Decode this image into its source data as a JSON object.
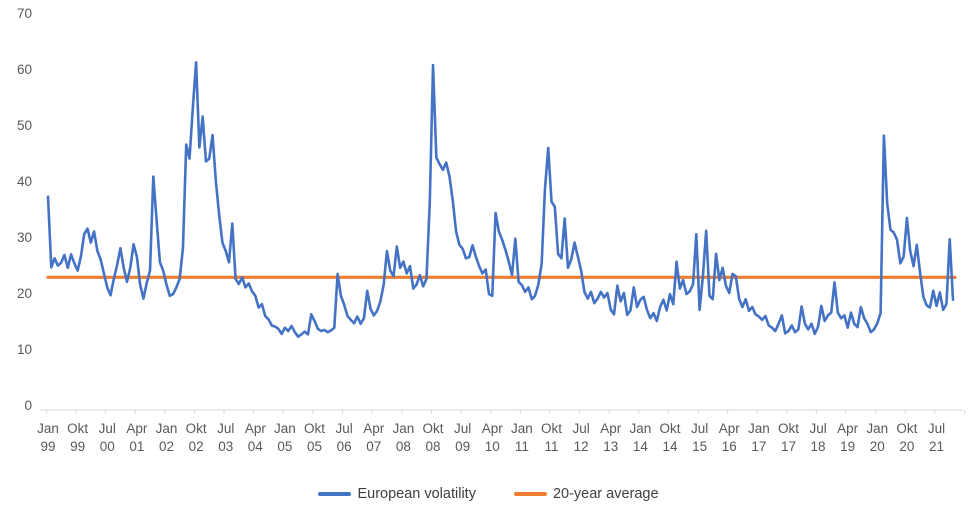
{
  "chart_data": {
    "type": "line",
    "title": "",
    "xlabel": "",
    "ylabel": "",
    "x_start": "Jan 1999",
    "x_frequency": "monthly",
    "x_tick_every_months": 9,
    "x_tick_labels": [
      "Jan 99",
      "Okt 99",
      "Jul 00",
      "Apr 01",
      "Jan 02",
      "Okt 02",
      "Jul 03",
      "Apr 04",
      "Jan 05",
      "Okt 05",
      "Jul 06",
      "Apr 07",
      "Jan 08",
      "Okt 08",
      "Jul 09",
      "Apr 10",
      "Jan 11",
      "Okt 11",
      "Jul 12",
      "Apr 13",
      "Jan 14",
      "Okt 14",
      "Jul 15",
      "Apr 16",
      "Jan 17",
      "Okt 17",
      "Jul 18",
      "Apr 19",
      "Jan 20",
      "Okt 20",
      "Jul 21"
    ],
    "ylim": [
      0,
      70
    ],
    "yticks": [
      0,
      10,
      20,
      30,
      40,
      50,
      60,
      70
    ],
    "grid": false,
    "legend_position": "bottom",
    "axis_text_color": "#595959",
    "axis_line_color": "#d9d9d9",
    "series": [
      {
        "name": "European volatility",
        "color": "#4472c4",
        "values": [
          37.2,
          24.6,
          26.2,
          24.9,
          25.4,
          26.8,
          24.5,
          26.9,
          25.3,
          24.0,
          26.5,
          30.5,
          31.5,
          29.0,
          31.0,
          27.5,
          26.0,
          23.5,
          21.0,
          19.6,
          22.5,
          25.0,
          28.0,
          24.5,
          22.0,
          24.5,
          28.7,
          26.5,
          21.5,
          19.0,
          21.8,
          24.0,
          40.8,
          33.0,
          25.5,
          24.0,
          21.5,
          19.5,
          19.8,
          21.0,
          22.5,
          28.0,
          46.5,
          44.0,
          53.0,
          61.2,
          46.0,
          51.5,
          43.5,
          44.0,
          48.2,
          40.0,
          34.0,
          29.0,
          27.5,
          25.5,
          32.4,
          22.5,
          21.6,
          22.8,
          21.0,
          21.7,
          20.3,
          19.5,
          17.4,
          18.0,
          15.9,
          15.3,
          14.2,
          14.0,
          13.6,
          12.7,
          13.8,
          13.2,
          14.1,
          13.0,
          12.2,
          12.6,
          13.1,
          12.6,
          16.2,
          15.0,
          13.6,
          13.2,
          13.4,
          13.0,
          13.3,
          13.8,
          23.4,
          19.5,
          17.9,
          15.9,
          15.2,
          14.6,
          15.8,
          14.5,
          15.5,
          20.4,
          17.2,
          16.0,
          16.8,
          18.5,
          21.5,
          27.5,
          24.0,
          23.0,
          28.3,
          24.5,
          25.6,
          23.5,
          24.8,
          20.8,
          21.5,
          23.2,
          21.2,
          22.5,
          36.0,
          60.7,
          44.2,
          43.0,
          42.0,
          43.3,
          40.8,
          36.5,
          31.0,
          28.6,
          27.9,
          26.2,
          26.4,
          28.5,
          26.5,
          24.8,
          23.5,
          24.2,
          19.8,
          19.5,
          34.3,
          31.0,
          29.5,
          27.7,
          25.6,
          23.2,
          29.7,
          22.0,
          21.4,
          20.2,
          21.0,
          18.9,
          19.5,
          21.5,
          25.2,
          38.5,
          45.9,
          36.3,
          35.4,
          27.0,
          26.2,
          33.3,
          24.5,
          26.0,
          29.0,
          26.5,
          24.0,
          20.2,
          19.0,
          20.2,
          18.2,
          19.0,
          20.2,
          19.2,
          20.0,
          17.0,
          16.2,
          21.3,
          18.5,
          20.0,
          16.1,
          16.9,
          21.0,
          17.5,
          18.8,
          19.3,
          17.0,
          15.5,
          16.4,
          15.0,
          17.5,
          18.8,
          16.9,
          19.8,
          18.0,
          25.6,
          20.8,
          22.3,
          19.8,
          20.3,
          21.5,
          30.5,
          17.0,
          23.0,
          31.1,
          19.5,
          18.9,
          27.0,
          22.3,
          24.5,
          21.3,
          20.0,
          23.4,
          23.0,
          19.0,
          17.5,
          18.9,
          16.8,
          17.5,
          16.2,
          15.8,
          15.2,
          15.9,
          14.2,
          13.8,
          13.2,
          14.5,
          16.0,
          12.8,
          13.2,
          14.2,
          13.0,
          13.5,
          17.6,
          14.5,
          13.5,
          14.5,
          12.7,
          14.0,
          17.7,
          15.0,
          16.0,
          16.5,
          21.9,
          16.5,
          15.5,
          16.0,
          13.8,
          16.5,
          14.5,
          13.9,
          17.5,
          15.5,
          14.5,
          13.0,
          13.5,
          14.6,
          16.4,
          48.1,
          36.0,
          31.3,
          30.8,
          29.5,
          25.3,
          26.5,
          33.4,
          27.5,
          24.8,
          28.6,
          23.6,
          19.3,
          17.8,
          17.4,
          20.4,
          17.7,
          20.1,
          17.0,
          18.0,
          29.6,
          18.8
        ]
      },
      {
        "name": "20-year average",
        "color": "#ed7d31",
        "type": "constant",
        "value": 22.8
      }
    ]
  }
}
